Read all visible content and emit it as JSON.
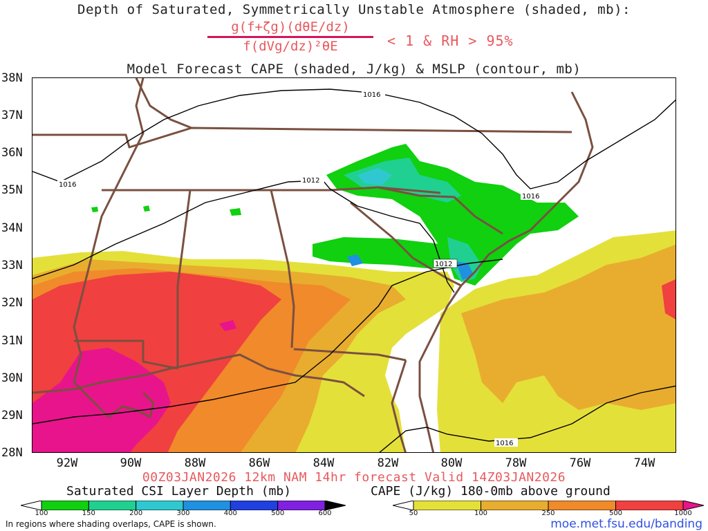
{
  "titles": {
    "line1": "Depth of Saturated, Symmetrically Unstable Atmosphere (shaded, mb):",
    "fraction_numerator": "g(f+ζg)(dθE/dz)",
    "fraction_denominator": "f(dVg/dz)²θE",
    "condition": "< 1 & RH > 95%",
    "line3": "Model Forecast CAPE (shaded, J/kg) & MSLP (contour, mb)"
  },
  "map": {
    "lat_labels": [
      "38N",
      "37N",
      "36N",
      "35N",
      "34N",
      "33N",
      "32N",
      "31N",
      "30N",
      "29N",
      "28N"
    ],
    "lon_labels": [
      "92W",
      "90W",
      "88W",
      "86W",
      "84W",
      "82W",
      "80W",
      "78W",
      "76W",
      "74W"
    ],
    "contour_labels": [
      "1016",
      "1016",
      "1012",
      "1016",
      "1012",
      "1016"
    ],
    "colors": {
      "border": "#7a5040",
      "contour": "#000000",
      "cape_50": "#e4e03a",
      "cape_100": "#e8ad2e",
      "cape_250": "#f08a2a",
      "cape_500": "#f04040",
      "cape_1000": "#e8148c",
      "csi_100": "#10d010",
      "csi_150": "#20d090",
      "csi_200": "#30c8d0",
      "csi_300": "#2090e0"
    }
  },
  "valid_time": "00Z03JAN2026 12km NAM 14hr forecast Valid 14Z03JAN2026",
  "colorbar_csi": {
    "title": "Saturated CSI Layer Depth (mb)",
    "labels": [
      "100",
      "150",
      "200",
      "300",
      "400",
      "500",
      "600"
    ],
    "colors": [
      "#ffffff",
      "#10d010",
      "#20d090",
      "#30c8d0",
      "#2090e0",
      "#2040e0",
      "#8020e0",
      "#000000"
    ]
  },
  "colorbar_cape": {
    "title": "CAPE (J/kg) 180-0mb above ground",
    "labels": [
      "50",
      "100",
      "250",
      "500",
      "1000"
    ],
    "colors": [
      "#ffffff",
      "#e4e03a",
      "#e8ad2e",
      "#f08a2a",
      "#f04040",
      "#e8148c"
    ]
  },
  "footer_note": "In regions where shading overlaps, CAPE is shown.",
  "url": "moe.met.fsu.edu/banding"
}
